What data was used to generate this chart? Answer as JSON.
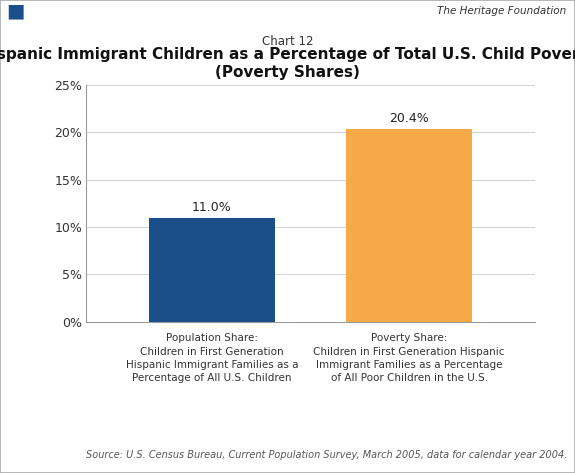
{
  "chart_label": "Chart 12",
  "title_line1": "Hispanic Immigrant Children as a Percentage of Total U.S. Child Poverty",
  "title_line2": "(Poverty Shares)",
  "cat1": "Population Share:\nChildren in First Generation\nHispanic Immigrant Families as a\nPercentage of All U.S. Children",
  "cat2": "Poverty Share:\nChildren in First Generation Hispanic\nImmigrant Families as a Percentage\nof All Poor Children in the U.S.",
  "values": [
    11.0,
    20.4
  ],
  "bar_colors": [
    "#1a4f8a",
    "#f5a947"
  ],
  "value_labels": [
    "11.0%",
    "20.4%"
  ],
  "ylim": [
    0,
    25
  ],
  "yticks": [
    0,
    5,
    10,
    15,
    20,
    25
  ],
  "ytick_labels": [
    "0%",
    "5%",
    "10%",
    "15%",
    "20%",
    "25%"
  ],
  "source_text": "Source: U.S. Census Bureau, Current Population Survey, March 2005, data for calendar year 2004.",
  "background_color": "#ffffff",
  "heritage_text": "The Heritage Foundation",
  "bar_width": 0.28,
  "x_positions": [
    0.28,
    0.72
  ]
}
